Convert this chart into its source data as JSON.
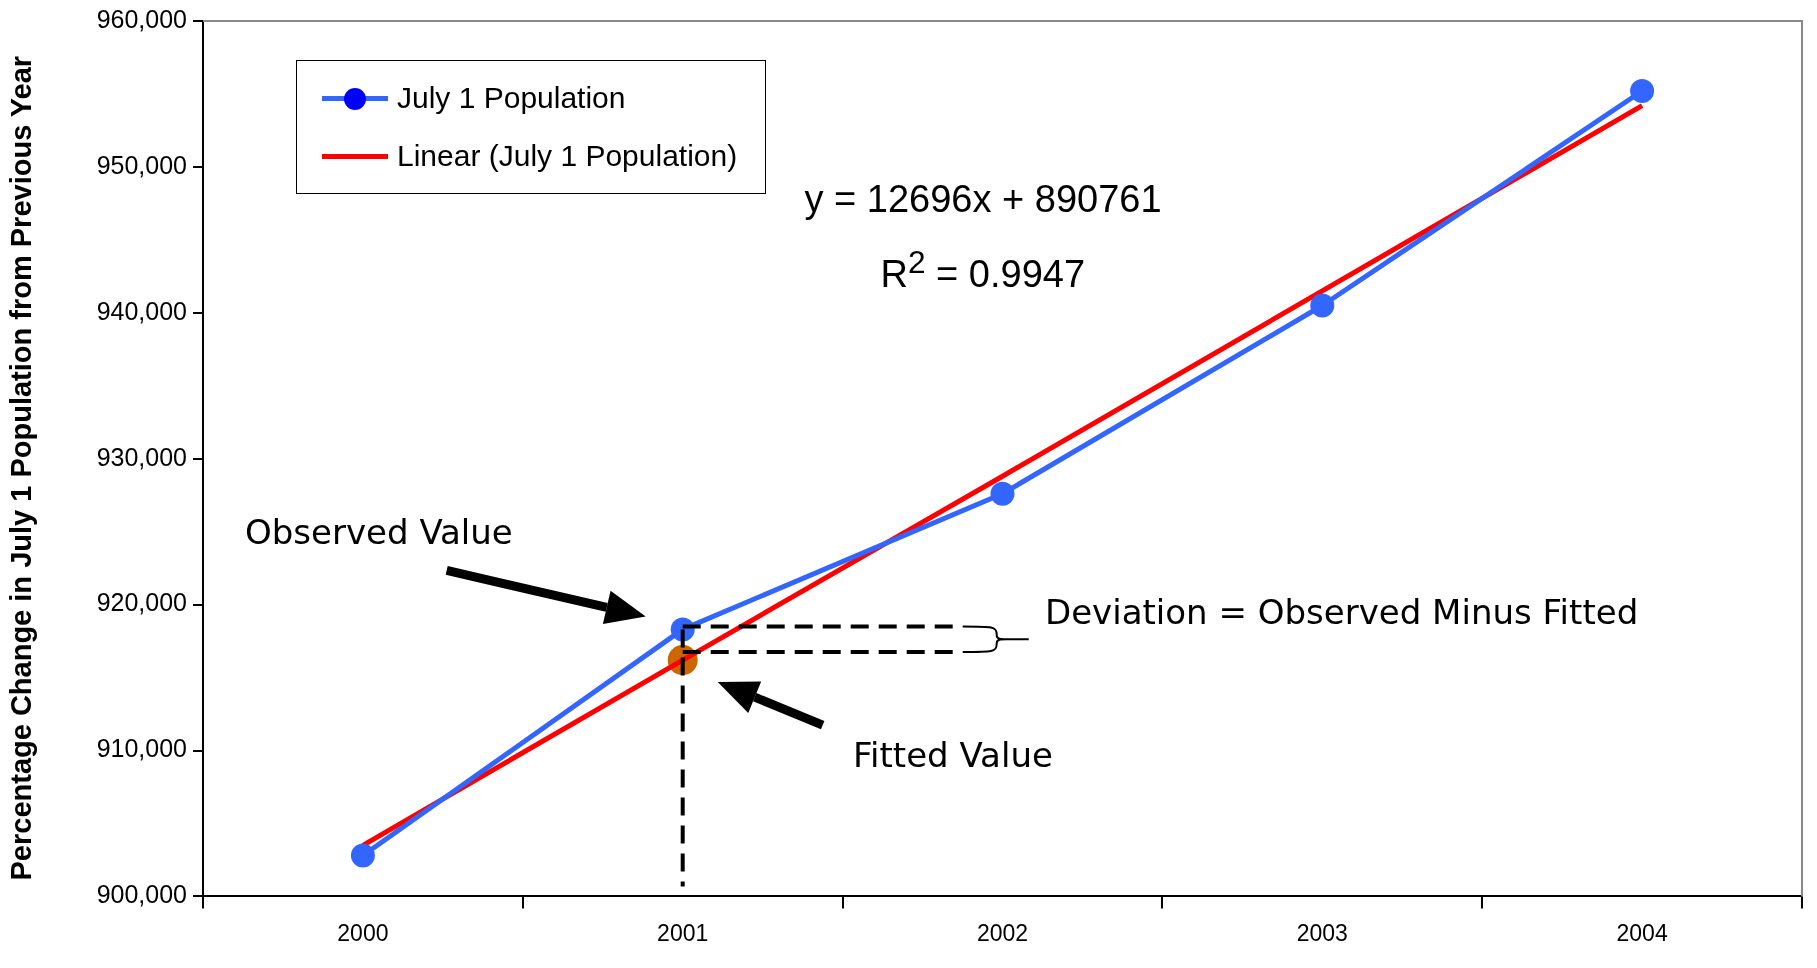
{
  "chart_data": {
    "type": "line",
    "categories": [
      "2000",
      "2001",
      "2002",
      "2003",
      "2004"
    ],
    "ylabel": "Percentage Change in July 1 Population from Previous Year",
    "ylim": [
      900000,
      960000
    ],
    "yticks": [
      {
        "value": 900000,
        "label": "900,000"
      },
      {
        "value": 910000,
        "label": "910,000"
      },
      {
        "value": 920000,
        "label": "920,000"
      },
      {
        "value": 930000,
        "label": "930,000"
      },
      {
        "value": 940000,
        "label": "940,000"
      },
      {
        "value": 950000,
        "label": "950,000"
      },
      {
        "value": 960000,
        "label": "960,000"
      }
    ],
    "grid": false,
    "legend": "top left",
    "marker": "circle",
    "series": [
      {
        "name": "July 1 Population",
        "color": "#3366ff",
        "values": [
          902800,
          918300,
          927600,
          940500,
          955200
        ]
      },
      {
        "name": "Linear (July 1 Population)",
        "type": "line",
        "marker": "none",
        "color": "#ff0000",
        "values": [
          903500,
          916200,
          928800,
          941500,
          954200
        ]
      },
      {
        "type": "scatter",
        "color": "#cc6600",
        "values": [
          null,
          916200,
          null,
          null,
          null
        ]
      }
    ],
    "annotations": [
      "y = 12696x + 890761",
      "R$^{2}$ = 0.9947",
      "Deviation = Observed Minus Fitted",
      "Observed Value",
      "Fitted Value"
    ]
  }
}
